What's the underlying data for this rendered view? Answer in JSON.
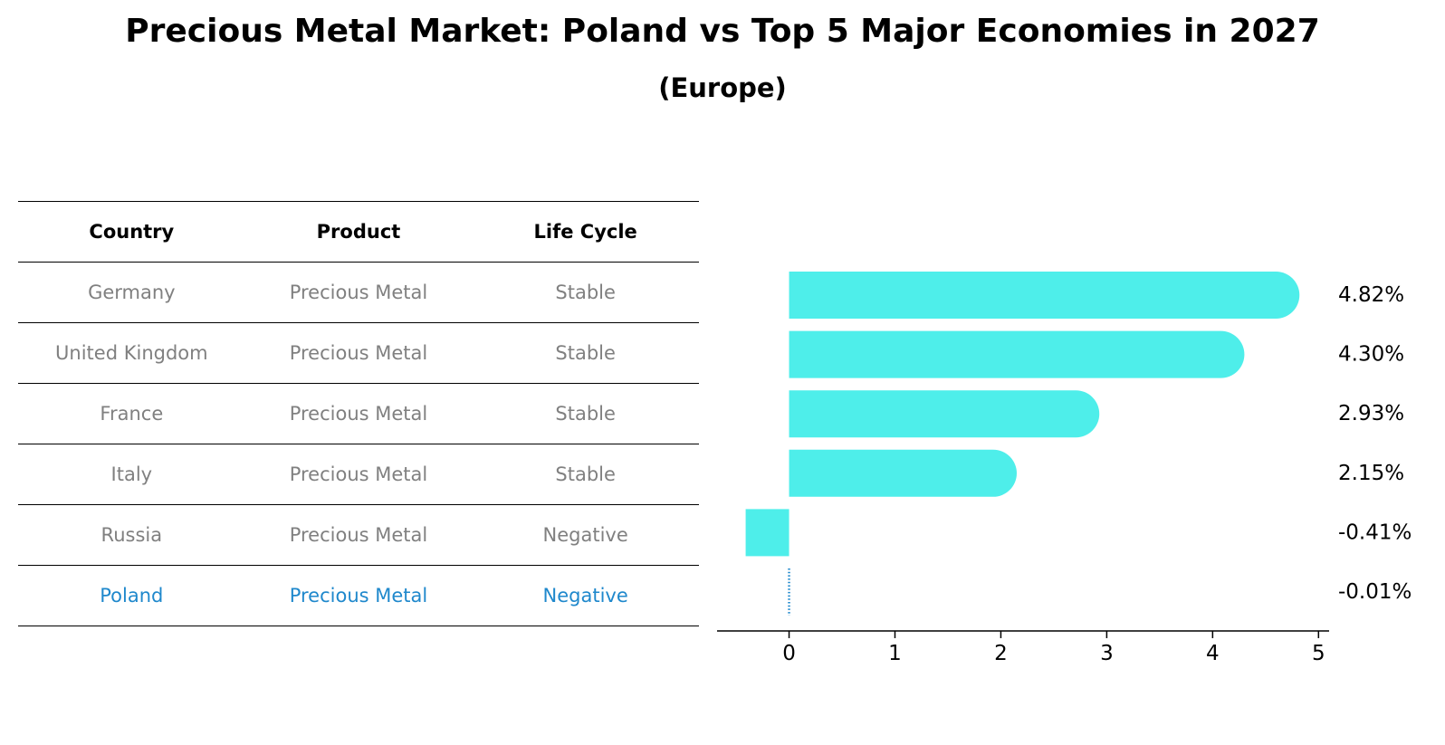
{
  "chart_data": {
    "type": "bar",
    "title": "Precious Metal Market: Poland vs Top 5 Major Economies in 2027",
    "subtitle": "(Europe)",
    "orientation": "horizontal",
    "categories": [
      "Germany",
      "United Kingdom",
      "France",
      "Italy",
      "Russia",
      "Poland"
    ],
    "values": [
      4.82,
      4.3,
      2.93,
      2.15,
      -0.41,
      -0.01
    ],
    "value_labels": [
      "4.82%",
      "4.30%",
      "2.93%",
      "2.15%",
      "-0.41%",
      "-0.01%"
    ],
    "xlim": [
      -0.68,
      5.1
    ],
    "xticks": [
      0,
      1,
      2,
      3,
      4,
      5
    ],
    "xlabel": "",
    "ylabel": "",
    "grid": false,
    "highlight": "Poland",
    "colors": {
      "bar": "#4eeeea",
      "highlight": "#1f88cc",
      "muted_text": "#808080",
      "axis": "#000000"
    }
  },
  "table": {
    "headers": [
      "Country",
      "Product",
      "Life Cycle"
    ],
    "rows": [
      {
        "country": "Germany",
        "product": "Precious Metal",
        "life_cycle": "Stable"
      },
      {
        "country": "United Kingdom",
        "product": "Precious Metal",
        "life_cycle": "Stable"
      },
      {
        "country": "France",
        "product": "Precious Metal",
        "life_cycle": "Stable"
      },
      {
        "country": "Italy",
        "product": "Precious Metal",
        "life_cycle": "Stable"
      },
      {
        "country": "Russia",
        "product": "Precious Metal",
        "life_cycle": "Negative"
      },
      {
        "country": "Poland",
        "product": "Precious Metal",
        "life_cycle": "Negative"
      }
    ]
  }
}
